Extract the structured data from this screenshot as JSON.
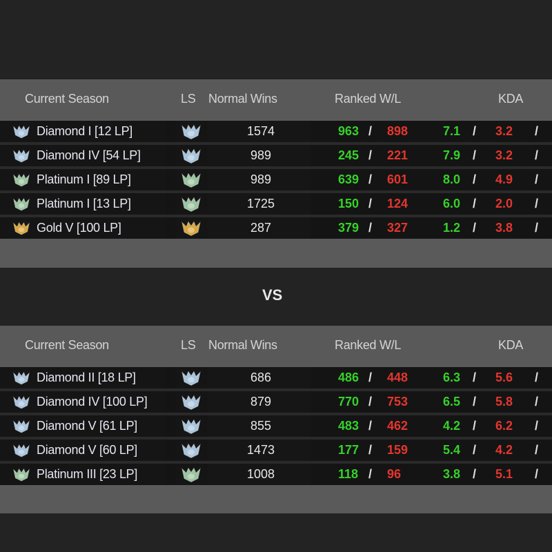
{
  "colors": {
    "page_bg": "#232323",
    "panel_bg": "#5a5a5a",
    "row_bg": "#141414",
    "win_color": "#36d12a",
    "loss_color": "#e4362e",
    "diamond_icon": "#a9c4dc",
    "platinum_icon": "#9bc4a0",
    "gold_icon": "#d9a640"
  },
  "vs_label": "VS",
  "teams": [
    {
      "headers": {
        "season": "Current Season",
        "ls": "LS",
        "normal_wins": "Normal Wins",
        "ranked_wl": "Ranked W/L",
        "kda": "KDA"
      },
      "players": [
        {
          "rank": "Diamond I [12 LP]",
          "tier": "diamond",
          "ls_tier": "diamond",
          "normal_wins": "1574",
          "wins": "963",
          "losses": "898",
          "kills": "7.1",
          "deaths": "3.2"
        },
        {
          "rank": "Diamond IV [54 LP]",
          "tier": "diamond",
          "ls_tier": "diamond",
          "normal_wins": "989",
          "wins": "245",
          "losses": "221",
          "kills": "7.9",
          "deaths": "3.2"
        },
        {
          "rank": "Platinum I [89 LP]",
          "tier": "platinum",
          "ls_tier": "platinum",
          "normal_wins": "989",
          "wins": "639",
          "losses": "601",
          "kills": "8.0",
          "deaths": "4.9"
        },
        {
          "rank": "Platinum I [13 LP]",
          "tier": "platinum",
          "ls_tier": "platinum",
          "normal_wins": "1725",
          "wins": "150",
          "losses": "124",
          "kills": "6.0",
          "deaths": "2.0"
        },
        {
          "rank": "Gold V [100 LP]",
          "tier": "gold",
          "ls_tier": "gold",
          "normal_wins": "287",
          "wins": "379",
          "losses": "327",
          "kills": "1.2",
          "deaths": "3.8"
        }
      ]
    },
    {
      "headers": {
        "season": "Current Season",
        "ls": "LS",
        "normal_wins": "Normal Wins",
        "ranked_wl": "Ranked W/L",
        "kda": "KDA"
      },
      "players": [
        {
          "rank": "Diamond II [18 LP]",
          "tier": "diamond",
          "ls_tier": "diamond",
          "normal_wins": "686",
          "wins": "486",
          "losses": "448",
          "kills": "6.3",
          "deaths": "5.6"
        },
        {
          "rank": "Diamond IV [100 LP]",
          "tier": "diamond",
          "ls_tier": "diamond",
          "normal_wins": "879",
          "wins": "770",
          "losses": "753",
          "kills": "6.5",
          "deaths": "5.8"
        },
        {
          "rank": "Diamond V [61 LP]",
          "tier": "diamond",
          "ls_tier": "diamond",
          "normal_wins": "855",
          "wins": "483",
          "losses": "462",
          "kills": "4.2",
          "deaths": "6.2"
        },
        {
          "rank": "Diamond V [60 LP]",
          "tier": "diamond",
          "ls_tier": "diamond",
          "normal_wins": "1473",
          "wins": "177",
          "losses": "159",
          "kills": "5.4",
          "deaths": "4.2"
        },
        {
          "rank": "Platinum III [23 LP]",
          "tier": "platinum",
          "ls_tier": "platinum",
          "normal_wins": "1008",
          "wins": "118",
          "losses": "96",
          "kills": "3.8",
          "deaths": "5.1"
        }
      ]
    }
  ]
}
